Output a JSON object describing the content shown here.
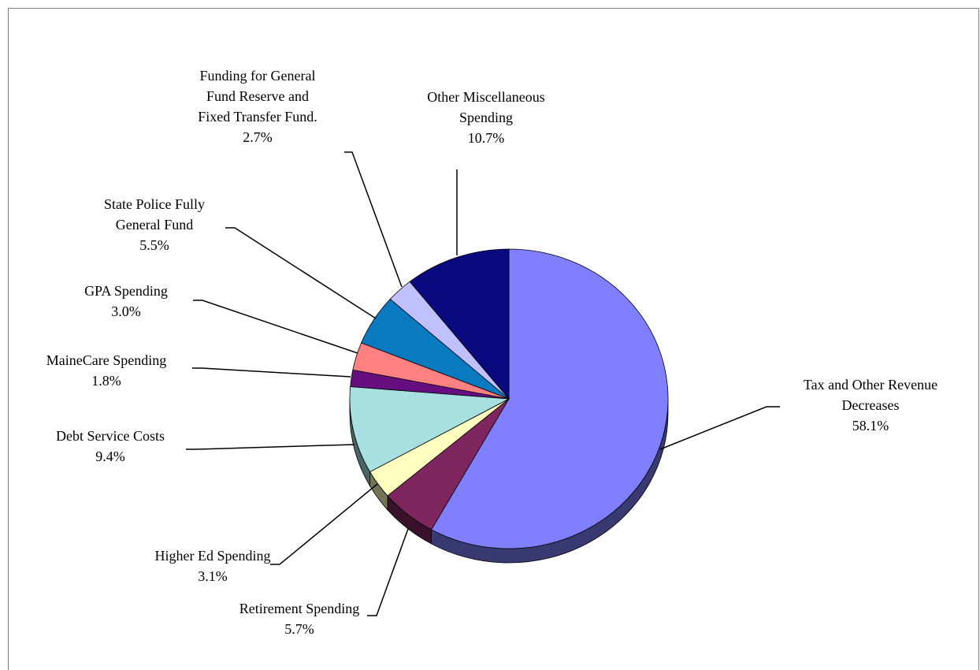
{
  "chart_data": {
    "type": "pie",
    "title": "",
    "slices": [
      {
        "label": "Tax and Other Revenue Decreases",
        "label_lines": [
          "Tax and Other Revenue",
          "Decreases"
        ],
        "pct_text": "58.1%",
        "value": 58.1,
        "color": "#8080ff"
      },
      {
        "label": "Retirement Spending",
        "label_lines": [
          "Retirement Spending"
        ],
        "pct_text": "5.7%",
        "value": 5.7,
        "color": "#7f2660"
      },
      {
        "label": "Higher Ed Spending",
        "label_lines": [
          "Higher Ed Spending"
        ],
        "pct_text": "3.1%",
        "value": 3.1,
        "color": "#ffffc0"
      },
      {
        "label": "Debt Service Costs",
        "label_lines": [
          "Debt Service Costs"
        ],
        "pct_text": "9.4%",
        "value": 9.4,
        "color": "#a6e0e0"
      },
      {
        "label": "MaineCare Spending",
        "label_lines": [
          "MaineCare Spending"
        ],
        "pct_text": "1.8%",
        "value": 1.8,
        "color": "#660e80"
      },
      {
        "label": "GPA Spending",
        "label_lines": [
          "GPA Spending"
        ],
        "pct_text": "3.0%",
        "value": 3.0,
        "color": "#ff8080"
      },
      {
        "label": "State Police Fully General Fund",
        "label_lines": [
          "State Police Fully",
          "General Fund"
        ],
        "pct_text": "5.5%",
        "value": 5.5,
        "color": "#0a7ac0"
      },
      {
        "label": "Funding for General Fund Reserve and Fixed Transfer Fund.",
        "label_lines": [
          "Funding for General",
          "Fund Reserve and",
          "Fixed Transfer Fund."
        ],
        "pct_text": "2.7%",
        "value": 2.7,
        "color": "#c0c0ff"
      },
      {
        "label": "Other Miscellaneous Spending",
        "label_lines": [
          "Other Miscellaneous",
          "Spending"
        ],
        "pct_text": "10.7%",
        "value": 10.7,
        "color": "#0a0a80"
      }
    ],
    "legend": "none",
    "data_labels": "outside with leader lines"
  }
}
